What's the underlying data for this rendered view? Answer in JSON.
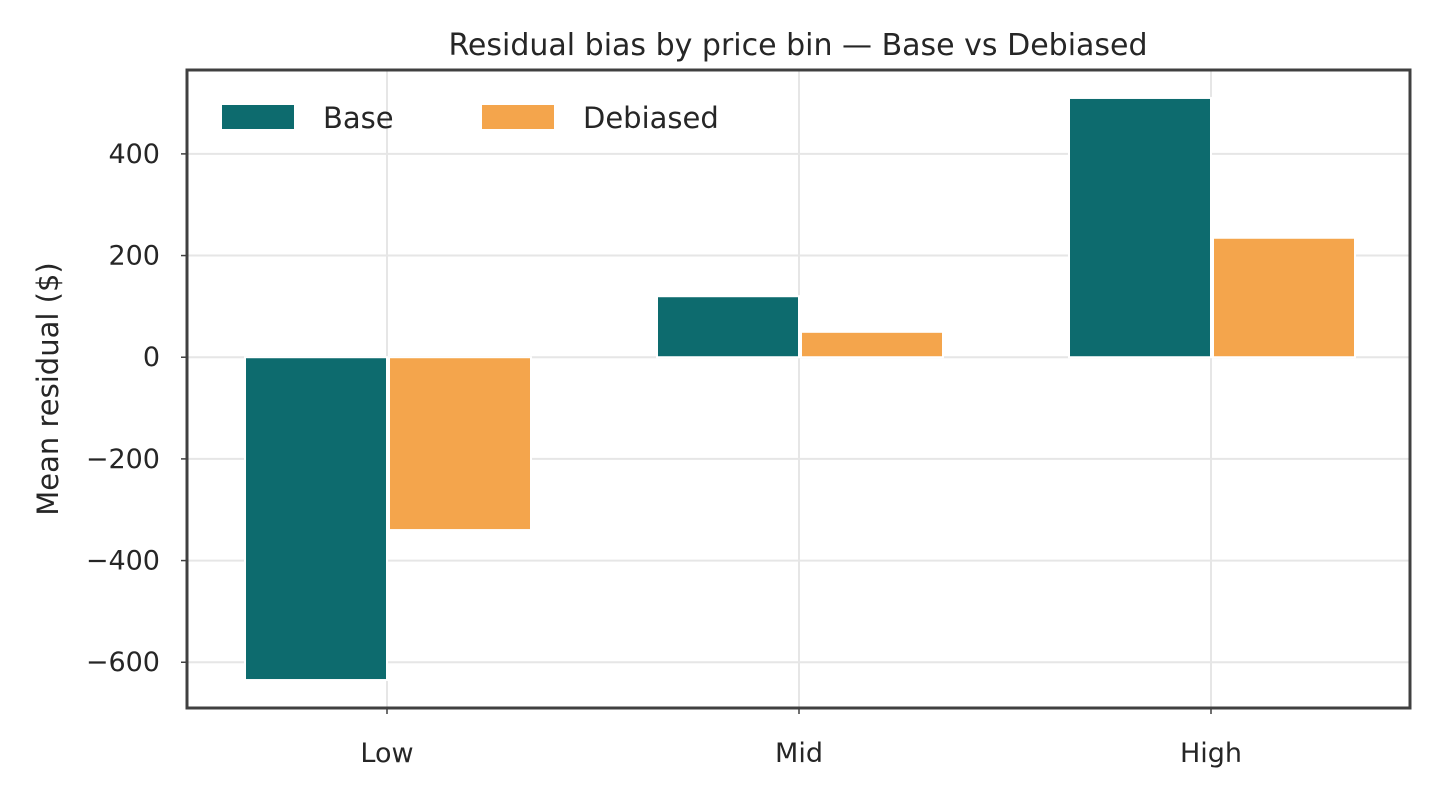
{
  "chart_data": {
    "type": "bar",
    "title": "Residual bias by price bin — Base vs Debiased",
    "xlabel": "",
    "ylabel": "Mean residual ($)",
    "categories": [
      "Low",
      "Mid",
      "High"
    ],
    "series": [
      {
        "name": "Base",
        "color": "#0d6b6e",
        "values": [
          -635,
          120,
          510
        ]
      },
      {
        "name": "Debiased",
        "color": "#f4a54c",
        "values": [
          -340,
          50,
          235
        ]
      }
    ],
    "ylim": [
      -690,
      565
    ],
    "yticks": [
      -600,
      -400,
      -200,
      0,
      200,
      400
    ],
    "ytick_labels": [
      "−600",
      "−400",
      "−200",
      "0",
      "200",
      "400"
    ],
    "grid": true,
    "legend": {
      "position": "top-left",
      "columns": 2
    }
  }
}
